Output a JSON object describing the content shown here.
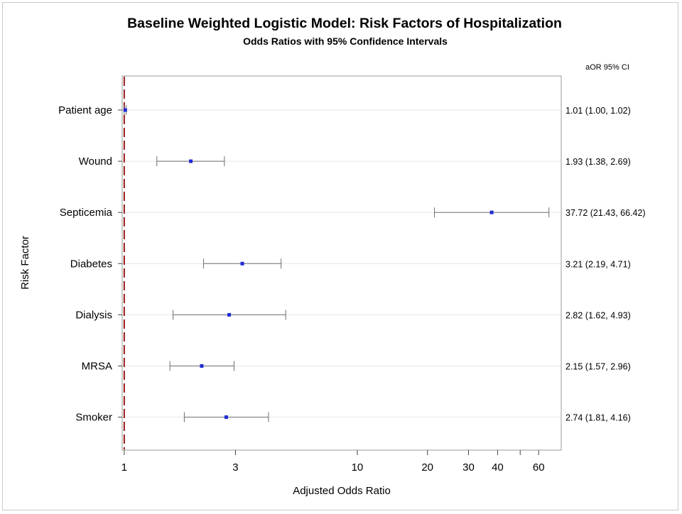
{
  "chart_data": {
    "type": "forest",
    "title": "Baseline Weighted Logistic Model: Risk Factors of Hospitalization",
    "subtitle": "Odds Ratios with 95% Confidence Intervals",
    "xlabel": "Adjusted Odds Ratio",
    "ylabel": "Risk Factor",
    "x_scale": "log",
    "xlim": [
      0.98,
      75
    ],
    "x_ticks": [
      1,
      3,
      10,
      20,
      30,
      40,
      50,
      60
    ],
    "x_tick_labels": [
      "1",
      "3",
      "10",
      "20",
      "30",
      "40",
      "",
      "60"
    ],
    "reference_line": 1,
    "right_column_header": "aOR 95% CI",
    "categories": [
      "Patient age",
      "Wound",
      "Septicemia",
      "Diabetes",
      "Dialysis",
      "MRSA",
      "Smoker"
    ],
    "estimates": [
      1.01,
      1.93,
      37.72,
      3.21,
      2.82,
      2.15,
      2.74
    ],
    "lower": [
      1.0,
      1.38,
      21.43,
      2.19,
      1.62,
      1.57,
      1.81
    ],
    "upper": [
      1.02,
      2.69,
      66.42,
      4.71,
      4.93,
      2.96,
      4.16
    ],
    "ci_labels": [
      "1.01 (1.00,  1.02)",
      "1.93 (1.38,  2.69)",
      "37.72 (21.43, 66.42)",
      "3.21 (2.19,  4.71)",
      "2.82 (1.62,  4.93)",
      "2.15 (1.57,  2.96)",
      "2.74 (1.81,  4.16)"
    ],
    "grid": true,
    "colors": {
      "marker": "#1f2bd6",
      "whisker": "#6e6e6e",
      "reference": "#9b1c1c",
      "grid": "#e6e6e6",
      "frame": "#9a9a9a"
    }
  }
}
